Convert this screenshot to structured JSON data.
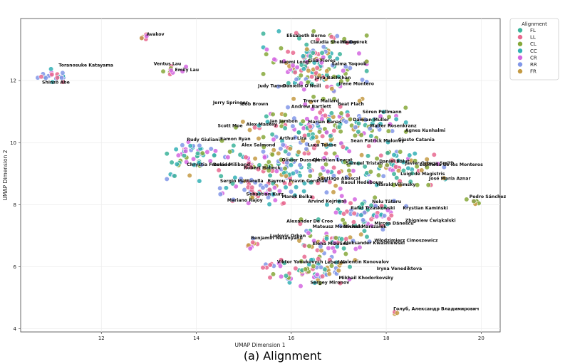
{
  "caption": "(a) Alignment",
  "chart_data": {
    "type": "scatter",
    "title": "",
    "xlabel": "UMAP Dimension 1",
    "ylabel": "UMAP Dimension 2",
    "xlim": [
      10.3,
      20.4
    ],
    "ylim": [
      3.9,
      14.0
    ],
    "xticks": [
      12,
      14,
      16,
      18,
      20
    ],
    "yticks": [
      4,
      6,
      8,
      10,
      12
    ],
    "grid": true,
    "legend": {
      "title": "Alignment",
      "placement": "top-right outside",
      "entries": [
        {
          "name": "FL",
          "color": "#3bb39a"
        },
        {
          "name": "LL",
          "color": "#e8698f"
        },
        {
          "name": "CL",
          "color": "#86a83a"
        },
        {
          "name": "CC",
          "color": "#33b0b5"
        },
        {
          "name": "CR",
          "color": "#d466e0"
        },
        {
          "name": "RR",
          "color": "#8197e8"
        },
        {
          "name": "FR",
          "color": "#c49a43"
        }
      ]
    },
    "clusters": [
      {
        "cx": 11.0,
        "cy": 12.15,
        "rx": 0.3,
        "ry": 0.2,
        "n": 22,
        "mix": [
          3,
          5,
          4,
          1
        ]
      },
      {
        "cx": 12.9,
        "cy": 13.4,
        "rx": 0.12,
        "ry": 0.1,
        "n": 6,
        "mix": [
          1,
          4,
          6
        ]
      },
      {
        "cx": 13.5,
        "cy": 12.35,
        "rx": 0.35,
        "ry": 0.12,
        "n": 10,
        "mix": [
          2,
          1,
          4
        ]
      },
      {
        "cx": 16.5,
        "cy": 12.5,
        "rx": 0.9,
        "ry": 0.9,
        "n": 140,
        "mix": [
          0,
          1,
          2,
          3,
          4,
          5,
          6
        ]
      },
      {
        "cx": 16.6,
        "cy": 10.5,
        "rx": 1.5,
        "ry": 0.7,
        "n": 150,
        "mix": [
          0,
          1,
          2,
          3,
          4,
          5,
          6
        ]
      },
      {
        "cx": 15.8,
        "cy": 9.2,
        "rx": 2.0,
        "ry": 0.8,
        "n": 170,
        "mix": [
          0,
          1,
          2,
          3,
          4,
          5,
          6
        ]
      },
      {
        "cx": 14.0,
        "cy": 9.6,
        "rx": 0.55,
        "ry": 0.45,
        "n": 45,
        "mix": [
          0,
          2,
          3,
          4,
          5
        ]
      },
      {
        "cx": 18.3,
        "cy": 9.3,
        "rx": 0.8,
        "ry": 0.55,
        "n": 60,
        "mix": [
          0,
          1,
          2,
          3,
          4,
          5,
          6
        ]
      },
      {
        "cx": 15.3,
        "cy": 8.4,
        "rx": 0.8,
        "ry": 0.35,
        "n": 40,
        "mix": [
          1,
          3,
          4,
          5
        ]
      },
      {
        "cx": 17.6,
        "cy": 7.7,
        "rx": 0.7,
        "ry": 0.45,
        "n": 60,
        "mix": [
          0,
          1,
          3,
          4,
          5
        ]
      },
      {
        "cx": 16.8,
        "cy": 6.8,
        "rx": 0.7,
        "ry": 0.6,
        "n": 60,
        "mix": [
          0,
          1,
          2,
          3,
          4,
          5,
          6
        ]
      },
      {
        "cx": 16.4,
        "cy": 5.8,
        "rx": 0.7,
        "ry": 0.35,
        "n": 60,
        "mix": [
          0,
          1,
          2,
          3,
          4,
          5,
          6
        ]
      },
      {
        "cx": 15.2,
        "cy": 6.7,
        "rx": 0.15,
        "ry": 0.25,
        "n": 8,
        "mix": [
          1,
          4,
          5,
          6
        ]
      },
      {
        "cx": 15.5,
        "cy": 6.05,
        "rx": 0.2,
        "ry": 0.1,
        "n": 6,
        "mix": [
          1,
          5
        ]
      },
      {
        "cx": 19.9,
        "cy": 8.05,
        "rx": 0.18,
        "ry": 0.1,
        "n": 10,
        "mix": [
          2,
          4,
          5,
          6
        ]
      },
      {
        "cx": 18.2,
        "cy": 4.5,
        "rx": 0.05,
        "ry": 0.05,
        "n": 3,
        "mix": [
          1,
          6
        ]
      }
    ],
    "annotations": [
      {
        "text": "Toranosuke Katayama",
        "x": 11.1,
        "y": 12.45
      },
      {
        "text": "Shinzō Abe",
        "x": 10.75,
        "y": 11.9
      },
      {
        "text": "Avakov",
        "x": 12.95,
        "y": 13.45
      },
      {
        "text": "Ventus Lau",
        "x": 13.1,
        "y": 12.5
      },
      {
        "text": "Emily Lau",
        "x": 13.55,
        "y": 12.3
      },
      {
        "text": "Elisabeth Borne",
        "x": 15.9,
        "y": 13.4
      },
      {
        "text": "Claudia Sheinbaum",
        "x": 16.4,
        "y": 13.2
      },
      {
        "text": "Na Ogórek",
        "x": 17.05,
        "y": 13.2
      },
      {
        "text": "Naomi Long",
        "x": 15.75,
        "y": 12.55
      },
      {
        "text": "Cilia Flores",
        "x": 16.35,
        "y": 12.6
      },
      {
        "text": "Salma Yaqoob",
        "x": 16.85,
        "y": 12.5
      },
      {
        "text": "Jaya Bachchan",
        "x": 16.5,
        "y": 12.05
      },
      {
        "text": "Irene Montero",
        "x": 17.0,
        "y": 11.85
      },
      {
        "text": "Judy Turner",
        "x": 15.3,
        "y": 11.78
      },
      {
        "text": "Danielle O'Neill",
        "x": 15.82,
        "y": 11.78
      },
      {
        "text": "Trevor Mallard",
        "x": 16.25,
        "y": 11.3
      },
      {
        "text": "Beat Flach",
        "x": 16.98,
        "y": 11.2
      },
      {
        "text": "Jerry Springer",
        "x": 14.35,
        "y": 11.25
      },
      {
        "text": "Bob Brown",
        "x": 14.95,
        "y": 11.2
      },
      {
        "text": "Andrew Bartlett",
        "x": 16.0,
        "y": 11.12
      },
      {
        "text": "Sören Pellmann",
        "x": 17.5,
        "y": 10.95
      },
      {
        "text": "Damian Müller",
        "x": 17.3,
        "y": 10.7
      },
      {
        "text": "Jan Jambon",
        "x": 15.55,
        "y": 10.65
      },
      {
        "text": "Marian Banaś",
        "x": 16.35,
        "y": 10.62
      },
      {
        "text": "Scott Moe",
        "x": 14.45,
        "y": 10.5
      },
      {
        "text": "Alex Maskey",
        "x": 15.05,
        "y": 10.55
      },
      {
        "text": "Walter Rosenkranz",
        "x": 17.65,
        "y": 10.5
      },
      {
        "text": "Agnes Kunhalmi",
        "x": 18.4,
        "y": 10.35
      },
      {
        "text": "Rudy Giuliani",
        "x": 13.8,
        "y": 10.05
      },
      {
        "text": "Eamon Ryan",
        "x": 14.5,
        "y": 10.08
      },
      {
        "text": "Arthur Lira",
        "x": 15.75,
        "y": 10.1
      },
      {
        "text": "Sean Patrick Maloney",
        "x": 17.25,
        "y": 10.02
      },
      {
        "text": "Giusto Catania",
        "x": 18.25,
        "y": 10.05
      },
      {
        "text": "Alex Salmond",
        "x": 14.95,
        "y": 9.88
      },
      {
        "text": "Luca Telese",
        "x": 16.35,
        "y": 9.88
      },
      {
        "text": "Olivier Dussopt",
        "x": 15.8,
        "y": 9.4
      },
      {
        "text": "Christian Levrat",
        "x": 16.45,
        "y": 9.4
      },
      {
        "text": "Daniel Bălut",
        "x": 17.85,
        "y": 9.35
      },
      {
        "text": "Javier Ortega Smith",
        "x": 18.4,
        "y": 9.3
      },
      {
        "text": "Chrystia Freeland",
        "x": 13.8,
        "y": 9.25
      },
      {
        "text": "David Miliband",
        "x": 14.35,
        "y": 9.25
      },
      {
        "text": "Robert Habeck",
        "x": 15.0,
        "y": 9.15
      },
      {
        "text": "Samuel Tristan",
        "x": 17.15,
        "y": 9.3
      },
      {
        "text": "Espinosa de los Monteros",
        "x": 18.7,
        "y": 9.25
      },
      {
        "text": "Luigi de Magistris",
        "x": 18.3,
        "y": 8.95
      },
      {
        "text": "Sergio Mattarella",
        "x": 14.5,
        "y": 8.72
      },
      {
        "text": "Bayrou",
        "x": 15.5,
        "y": 8.72
      },
      {
        "text": "Pravin Gordhan",
        "x": 15.95,
        "y": 8.72
      },
      {
        "text": "Santiago Abascal",
        "x": 16.55,
        "y": 8.8
      },
      {
        "text": "José María Aznar",
        "x": 18.9,
        "y": 8.8
      },
      {
        "text": "Raoul Hedebouw",
        "x": 17.05,
        "y": 8.68
      },
      {
        "text": "Harald Vilimsky",
        "x": 17.8,
        "y": 8.6
      },
      {
        "text": "Sebastian Kurz",
        "x": 15.05,
        "y": 8.3
      },
      {
        "text": "Marek Belka",
        "x": 15.8,
        "y": 8.22
      },
      {
        "text": "Mariano Rajoy",
        "x": 14.65,
        "y": 8.1
      },
      {
        "text": "Arvind Kejriwal",
        "x": 16.35,
        "y": 8.07
      },
      {
        "text": "Nelu Tătaru",
        "x": 17.7,
        "y": 8.05
      },
      {
        "text": "Pedro Sánchez",
        "x": 19.75,
        "y": 8.22
      },
      {
        "text": "Rafał Trzaskowski",
        "x": 17.25,
        "y": 7.85
      },
      {
        "text": "Krystian Kamiński",
        "x": 18.35,
        "y": 7.85
      },
      {
        "text": "Alexander De Croo",
        "x": 15.9,
        "y": 7.42
      },
      {
        "text": "Mircea Dănescu",
        "x": 17.75,
        "y": 7.35
      },
      {
        "text": "Zbigniew Ćwiąkalski",
        "x": 18.4,
        "y": 7.45
      },
      {
        "text": "Mateusz Morawiecki",
        "x": 16.45,
        "y": 7.25
      },
      {
        "text": "Michał Marszałek",
        "x": 17.1,
        "y": 7.25
      },
      {
        "text": "Ludovic Orban",
        "x": 15.55,
        "y": 6.95
      },
      {
        "text": "Benjamin Netanyahu",
        "x": 15.15,
        "y": 6.88
      },
      {
        "text": "Włodzimierz Cimoszewicz",
        "x": 17.75,
        "y": 6.8
      },
      {
        "text": "Elena Mizulina",
        "x": 16.45,
        "y": 6.7
      },
      {
        "text": "Aleksander Kwaśniewski",
        "x": 17.1,
        "y": 6.72
      },
      {
        "text": "Valentin Konovalov",
        "x": 17.05,
        "y": 6.12
      },
      {
        "text": "Viktor Yanukovych",
        "x": 15.7,
        "y": 6.12
      },
      {
        "text": "Lebedev",
        "x": 16.7,
        "y": 6.1
      },
      {
        "text": "Iryna Venediktova",
        "x": 17.8,
        "y": 5.9
      },
      {
        "text": "Mikhail Khodorkovsky",
        "x": 17.0,
        "y": 5.6
      },
      {
        "text": "Sergey Mironov",
        "x": 16.4,
        "y": 5.45
      },
      {
        "text": "Голуб, Александр Владимирович",
        "x": 18.15,
        "y": 4.6
      }
    ]
  }
}
